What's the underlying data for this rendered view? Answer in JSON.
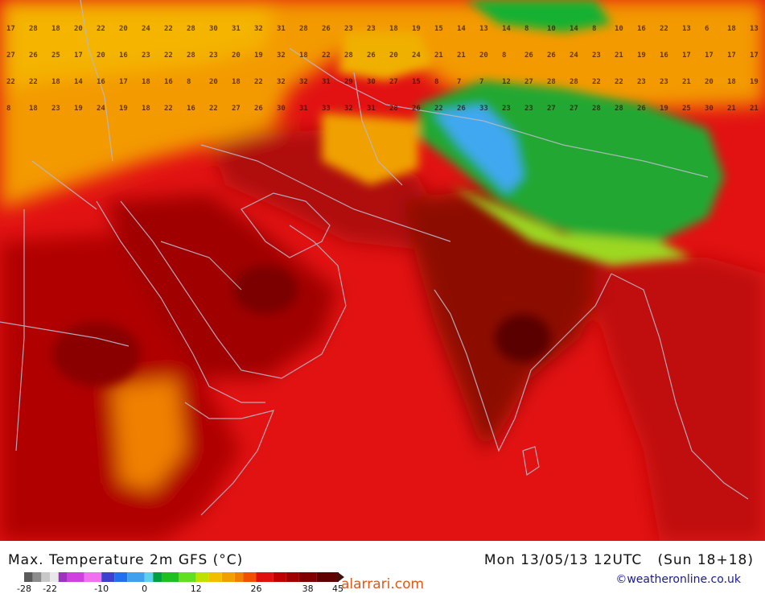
{
  "title": "Max. Temperature 2m GFS (°C)",
  "datetime": "Mon 13/05/13 12UTC",
  "run": "(Sun 18+18)",
  "credit": "©weatheronline.co.uk",
  "watermark": "alarrari.com",
  "legend": {
    "ticks": [
      "-28",
      "-22",
      "-10",
      "0",
      "12",
      "26",
      "38",
      "45"
    ],
    "tick_values": [
      -28,
      -22,
      -10,
      0,
      12,
      26,
      38,
      45
    ],
    "colors": [
      "#5a5a5a",
      "#8c8c8c",
      "#c8c8c8",
      "#e8e8e8",
      "#a030c0",
      "#d040e0",
      "#f070f0",
      "#4040d0",
      "#2070f0",
      "#40a0f0",
      "#60d0f0",
      "#00a040",
      "#20c020",
      "#60e020",
      "#c0e000",
      "#f0c000",
      "#f0a000",
      "#f08000",
      "#f05000",
      "#e01010",
      "#c00000",
      "#a00000",
      "#800000",
      "#600000",
      "#401010"
    ],
    "color_values": [
      -28,
      -26,
      -24,
      -22,
      -20,
      -18,
      -14,
      -10,
      -7,
      -4,
      0,
      2,
      4,
      8,
      12,
      15,
      18,
      21,
      23,
      26,
      30,
      33,
      36,
      40,
      45
    ]
  },
  "map": {
    "type": "temperature_heatmap",
    "region": "Middle East, East Africa, Arabian Sea, India, Tibet",
    "features": [
      {
        "name": "arabian-sea",
        "label": "",
        "color": "#e01010"
      },
      {
        "name": "indian-subcontinent",
        "label": "",
        "color": "#8a0a08"
      },
      {
        "name": "tibetan-plateau",
        "label": "",
        "color": "#20a030"
      },
      {
        "name": "caspian-steppe",
        "label": "",
        "color": "#f0a000"
      }
    ],
    "grid_values": [
      [
        17,
        28,
        18,
        20,
        22,
        20,
        24,
        22,
        28,
        30,
        31,
        32,
        31,
        28,
        26,
        23,
        23,
        18,
        19,
        15,
        14,
        13,
        14,
        8,
        10,
        14,
        8,
        10,
        16,
        22,
        13,
        6,
        18,
        13
      ],
      [
        27,
        26,
        25,
        17,
        20,
        16,
        23,
        22,
        28,
        23,
        20,
        19,
        32,
        18,
        22,
        28,
        26,
        20,
        24,
        21,
        21,
        20,
        8,
        26,
        26,
        24,
        23,
        21,
        19,
        16,
        17,
        17,
        17,
        17
      ],
      [
        22,
        22,
        18,
        14,
        16,
        17,
        18,
        16,
        8,
        20,
        18,
        22,
        32,
        32,
        31,
        29,
        30,
        27,
        15,
        8,
        7,
        7,
        12,
        27,
        28,
        28,
        22,
        22,
        23,
        23,
        21,
        20,
        18,
        19
      ],
      [
        8,
        18,
        23,
        19,
        24,
        19,
        18,
        22,
        16,
        22,
        27,
        26,
        30,
        31,
        33,
        32,
        31,
        28,
        26,
        22,
        26,
        33,
        23,
        23,
        27,
        27,
        28,
        28,
        26,
        19,
        25,
        30,
        21,
        21
      ]
    ]
  }
}
